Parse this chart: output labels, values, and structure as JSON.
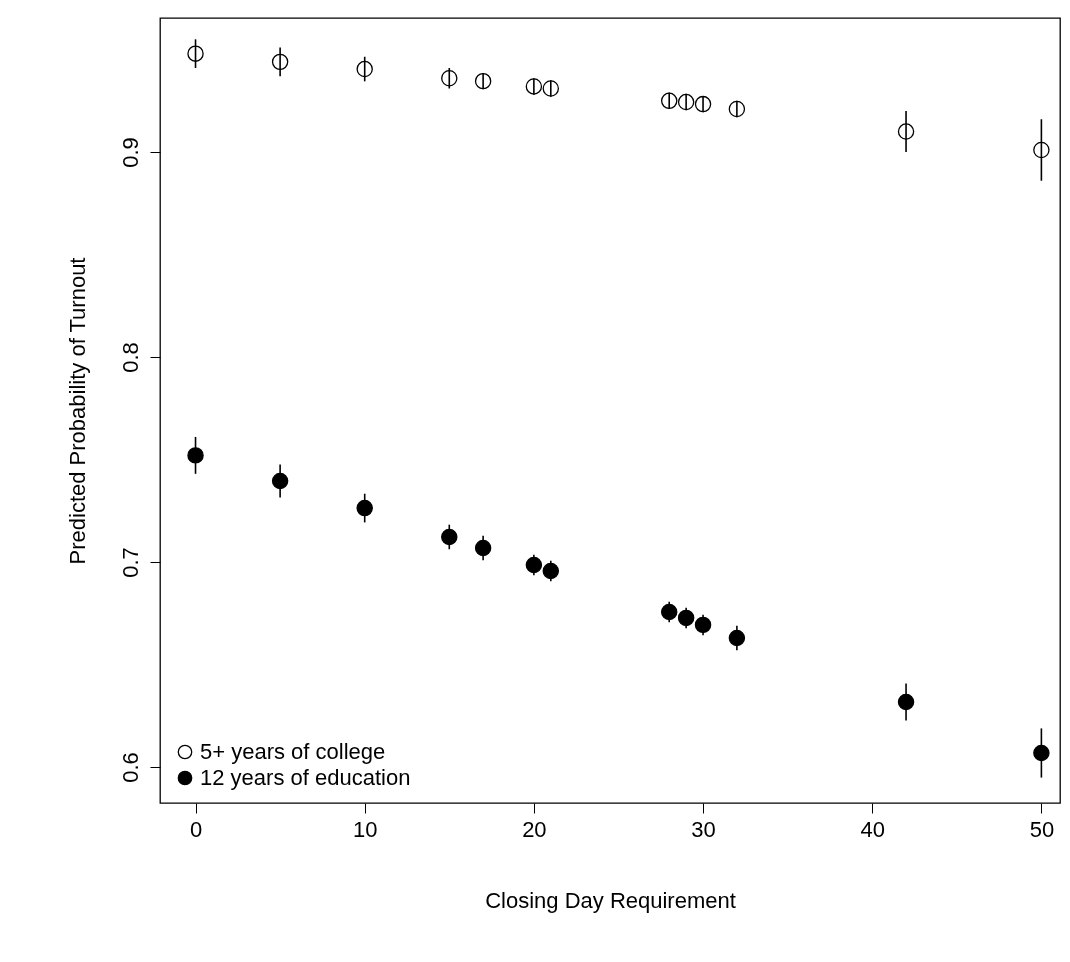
{
  "chart_data": {
    "type": "scatter",
    "xlabel": "Closing Day Requirement",
    "ylabel": "Predicted Probability of Turnout",
    "x": [
      0,
      5,
      10,
      15,
      17,
      20,
      21,
      28,
      29,
      30,
      32,
      42,
      50
    ],
    "series": [
      {
        "name": "5+ years of college",
        "color": "#000000",
        "values": [
          0.948,
          0.944,
          0.9405,
          0.936,
          0.9346,
          0.932,
          0.931,
          0.925,
          0.9244,
          0.9234,
          0.921,
          0.91,
          0.901
        ],
        "errors": [
          0.007,
          0.007,
          0.006,
          0.005,
          0.004,
          0.004,
          0.004,
          0.004,
          0.004,
          0.004,
          0.004,
          0.01,
          0.015
        ]
      },
      {
        "name": "12 years of education",
        "color": "#000000",
        "values": [
          0.752,
          0.7395,
          0.7263,
          0.7122,
          0.7068,
          0.6985,
          0.6956,
          0.6756,
          0.6727,
          0.6693,
          0.6629,
          0.6317,
          0.6068
        ],
        "errors": [
          0.009,
          0.008,
          0.007,
          0.006,
          0.006,
          0.005,
          0.005,
          0.005,
          0.005,
          0.005,
          0.006,
          0.009,
          0.012
        ]
      }
    ],
    "xlim": [
      -2.1,
      51.1
    ],
    "xticks": [
      0,
      10,
      20,
      30,
      40,
      50
    ],
    "ylim": [
      0.5824,
      0.9654
    ],
    "yticks": [
      0.6,
      0.7,
      0.8,
      0.9
    ],
    "marker": "circle",
    "grid": false,
    "legend": "bottom left"
  }
}
